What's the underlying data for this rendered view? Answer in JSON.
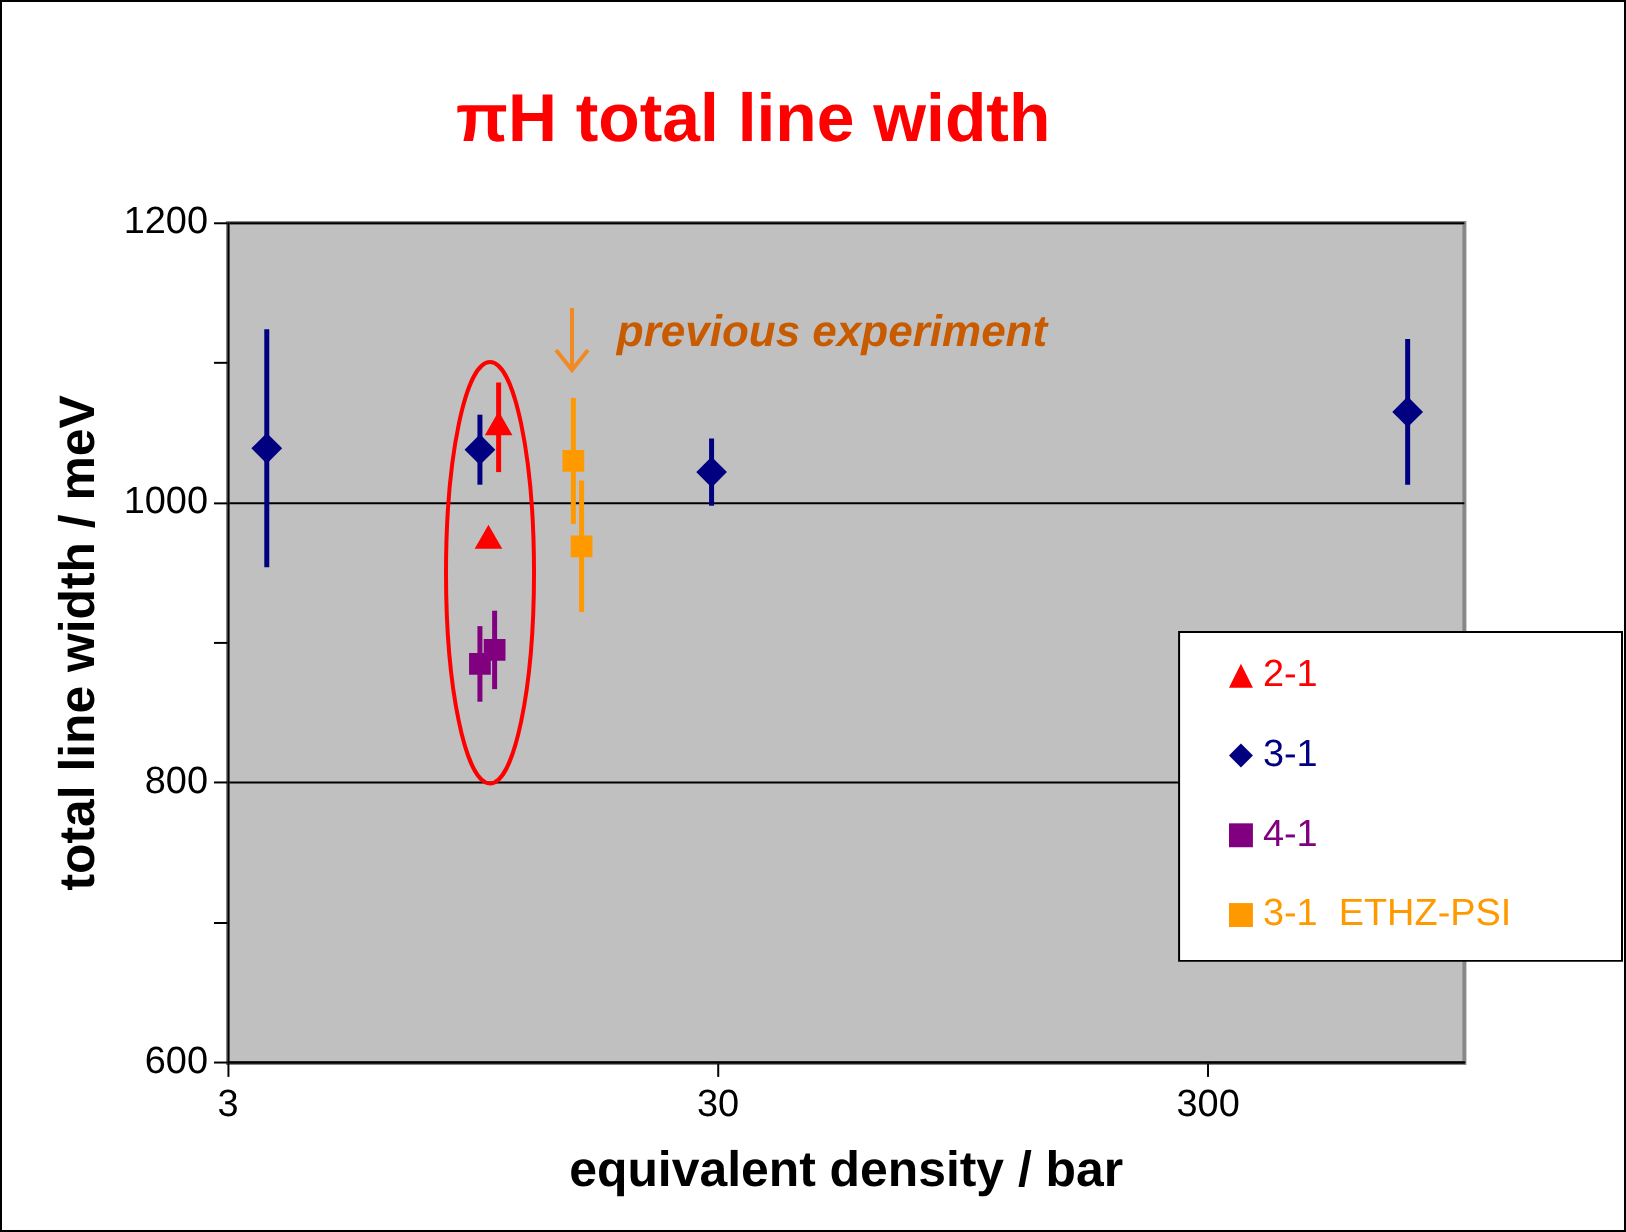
{
  "chart_data": {
    "type": "scatter",
    "title": "πH total line width",
    "xlabel": "equivalent density / bar",
    "ylabel": "total line width / meV",
    "log": "x",
    "xlim": [
      3,
      1000
    ],
    "xticks": [
      3,
      30,
      300
    ],
    "ylim": [
      600,
      1200
    ],
    "yticks": [
      600,
      {
        "value": 700,
        "label": null
      },
      800,
      {
        "value": 900,
        "label": null
      },
      1000,
      {
        "value": 1100,
        "label": null
      },
      1200
    ],
    "grid": "y",
    "legend": "bottom right",
    "annotations": [
      {
        "text": "previous experiment",
        "x": 15.2,
        "y": 1100
      }
    ],
    "series": [
      {
        "name": "2-1",
        "color": "#ff0000",
        "marker": "triangle",
        "x": [
          10.7,
          10.2
        ],
        "values": [
          1054,
          973
        ],
        "errors": [
          32,
          null
        ]
      },
      {
        "name": "3-1",
        "color": "#000080",
        "marker": "diamond",
        "x": [
          3.6,
          9.8,
          29.1,
          766
        ],
        "values": [
          1039,
          1038,
          1022,
          1065
        ],
        "errors": [
          85,
          25,
          24,
          52
        ]
      },
      {
        "name": "4-1",
        "color": "#800080",
        "marker": "square",
        "x": [
          9.8,
          10.5
        ],
        "values": [
          885,
          895
        ],
        "errors": [
          27,
          28
        ]
      },
      {
        "name": "3-1  ETHZ-PSI",
        "color": "#ff9900",
        "marker": "square",
        "x": [
          15.2,
          15.8
        ],
        "values": [
          1030,
          969
        ],
        "errors": [
          45,
          47
        ]
      }
    ]
  }
}
